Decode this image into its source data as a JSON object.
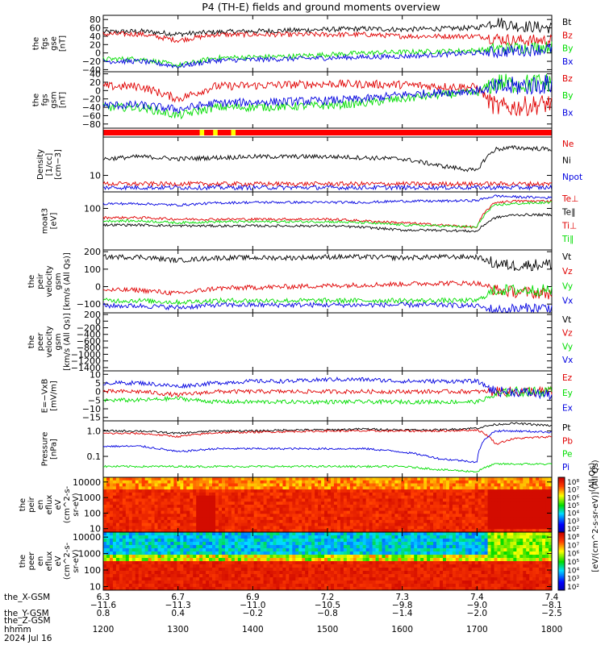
{
  "title": "P4 (TH-E) fields and ground moments overview",
  "colors": {
    "black": "#000000",
    "red": "#e00000",
    "green": "#00dd00",
    "blue": "#0000e0",
    "bar_red": "#ff0000",
    "bar_yellow": "#ffff00"
  },
  "panels": [
    {
      "id": "fgs-gse",
      "ylabel": [
        "the",
        "fgs",
        "gse",
        "[nT]"
      ],
      "yticks": [
        "80",
        "60",
        "40",
        "20",
        "0",
        "−20",
        "−40"
      ],
      "ylim": [
        -45,
        90
      ],
      "ylog": false,
      "legend": [
        {
          "label": "Bt",
          "color": "black"
        },
        {
          "label": "Bz",
          "color": "red"
        },
        {
          "label": "By",
          "color": "green"
        },
        {
          "label": "Bx",
          "color": "blue"
        }
      ]
    },
    {
      "id": "fgs-gsm",
      "ylabel": [
        "the",
        "fgs",
        "gsm",
        "[nT]"
      ],
      "yticks": [
        "40",
        "20",
        "0",
        "−20",
        "−40",
        "−60",
        "−80"
      ],
      "ylim": [
        -90,
        45
      ],
      "ylog": false,
      "legend": [
        {
          "label": "Bz",
          "color": "red"
        },
        {
          "label": "By",
          "color": "green"
        },
        {
          "label": "Bx",
          "color": "blue"
        }
      ]
    },
    {
      "id": "mode-bar",
      "ylabel": [],
      "yticks": [],
      "legend": []
    },
    {
      "id": "density",
      "ylabel": [
        "Density",
        "[1/cc]",
        "[cm−3]"
      ],
      "yticks": [
        "10"
      ],
      "ylim": [
        5,
        50
      ],
      "ylog": true,
      "legend": [
        {
          "label": "Ne",
          "color": "red"
        },
        {
          "label": "Ni",
          "color": "black"
        },
        {
          "label": "Npot",
          "color": "blue"
        }
      ]
    },
    {
      "id": "temperature",
      "ylabel": [
        "moat3",
        "[eV]"
      ],
      "yticks": [
        "100"
      ],
      "ylim": [
        10,
        250
      ],
      "ylog": true,
      "legend": [
        {
          "label": "Te⊥",
          "color": "red"
        },
        {
          "label": "Te∥",
          "color": "black"
        },
        {
          "label": "Ti⊥",
          "color": "red"
        },
        {
          "label": "Ti∥",
          "color": "green"
        }
      ]
    },
    {
      "id": "peir-velocity",
      "ylabel": [
        "the",
        "peir",
        "velocity",
        "gsm",
        "[km/s (All Qs)]"
      ],
      "yticks": [
        "200",
        "100",
        "0",
        "−100"
      ],
      "ylim": [
        -150,
        210
      ],
      "ylog": false,
      "legend": [
        {
          "label": "Vt",
          "color": "black"
        },
        {
          "label": "Vz",
          "color": "red"
        },
        {
          "label": "Vy",
          "color": "green"
        },
        {
          "label": "Vx",
          "color": "blue"
        }
      ]
    },
    {
      "id": "peer-velocity",
      "ylabel": [
        "the",
        "peer",
        "velocity",
        "gsm",
        "[km/s (All Qs)]"
      ],
      "yticks": [
        "200",
        "0",
        "−200",
        "−400",
        "−600",
        "−800",
        "−1000",
        "−1200",
        "−1400"
      ],
      "ylim": [
        -1500,
        250
      ],
      "ylog": false,
      "legend": [
        {
          "label": "Vt",
          "color": "black"
        },
        {
          "label": "Vz",
          "color": "red"
        },
        {
          "label": "Vy",
          "color": "green"
        },
        {
          "label": "Vx",
          "color": "blue"
        }
      ]
    },
    {
      "id": "efield",
      "ylabel": [
        "E=−VxB",
        "[mV/m]"
      ],
      "yticks": [
        "10",
        "5",
        "0",
        "−5",
        "−10",
        "−15"
      ],
      "ylim": [
        -17,
        12
      ],
      "ylog": false,
      "legend": [
        {
          "label": "Ez",
          "color": "red"
        },
        {
          "label": "Ey",
          "color": "green"
        },
        {
          "label": "Ex",
          "color": "blue"
        }
      ]
    },
    {
      "id": "pressure",
      "ylabel": [
        "Pressure",
        "[nPa]"
      ],
      "yticks": [
        "1.0",
        "0.1"
      ],
      "ylim": [
        0.015,
        2.5
      ],
      "ylog": true,
      "legend": [
        {
          "label": "Pt",
          "color": "black"
        },
        {
          "label": "Pb",
          "color": "red"
        },
        {
          "label": "Pe",
          "color": "green"
        },
        {
          "label": "Pi",
          "color": "blue"
        }
      ]
    },
    {
      "id": "peir-eflux",
      "ylabel": [
        "the",
        "peir",
        "en",
        "eflux",
        "eV",
        "(cm^2-s-",
        "sr-eV)"
      ],
      "yticks": [
        "10000",
        "1000",
        "100",
        "10"
      ],
      "ylim": [
        6,
        20000
      ],
      "ylog": true,
      "legend": []
    },
    {
      "id": "peer-eflux",
      "ylabel": [
        "the",
        "peer",
        "en",
        "eflux",
        "eV",
        "(cm^2-s-",
        "sr-eV)"
      ],
      "yticks": [
        "10000",
        "1000",
        "100",
        "10"
      ],
      "ylim": [
        6,
        20000
      ],
      "ylog": true,
      "legend": []
    }
  ],
  "colorbars": [
    {
      "ticks": [
        "10⁸",
        "10⁷",
        "10⁶",
        "10⁵",
        "10⁴",
        "10³",
        "10²"
      ]
    },
    {
      "ticks": [
        "10⁸",
        "10⁷",
        "10⁶",
        "10⁵",
        "10⁴",
        "10³",
        "10²"
      ]
    }
  ],
  "colorbar_label": "[eV/(cm^2-s-sr-eV)] (All Qs)",
  "pressure_side_label": "(All Qs)",
  "xaxis": {
    "rows": [
      {
        "label": "the_X-GSM",
        "values": [
          "6.3",
          "6.7",
          "6.9",
          "7.2",
          "7.3",
          "7.4",
          "7.4"
        ]
      },
      {
        "label": "",
        "values": [
          "−11.6",
          "−11.3",
          "−11.0",
          "−10.5",
          "−9.8",
          "−9.0",
          "−8.1"
        ]
      },
      {
        "label": "the_Y-GSM",
        "values": [
          "0.8",
          "0.4",
          "−0.2",
          "−0.8",
          "−1.4",
          "−2.0",
          "−2.5"
        ]
      },
      {
        "label": "the_Z-GSM",
        "values": [
          "",
          "",
          "",
          "",
          "",
          "",
          ""
        ]
      },
      {
        "label": "hhmm",
        "values": [
          "1200",
          "1300",
          "1400",
          "1500",
          "1600",
          "1700",
          "1800"
        ]
      }
    ],
    "date": "2024 Jul 16"
  },
  "chart_data": {
    "type": "line",
    "title": "P4 (TH-E) fields and ground moments overview",
    "x": [
      "1200",
      "1230",
      "1300",
      "1330",
      "1400",
      "1430",
      "1500",
      "1530",
      "1600",
      "1630",
      "1700",
      "1715",
      "1730",
      "1800"
    ],
    "xlabel": "hhmm",
    "date": "2024 Jul 16",
    "panels": [
      {
        "ylabel": "the fgs gse [nT]",
        "ylim": [
          -45,
          90
        ],
        "series": [
          {
            "name": "Bt",
            "values": [
              50,
              52,
              45,
              50,
              52,
              54,
              56,
              58,
              56,
              58,
              60,
              75,
              65,
              60
            ]
          },
          {
            "name": "Bz",
            "values": [
              45,
              45,
              30,
              44,
              44,
              44,
              44,
              44,
              40,
              40,
              40,
              35,
              30,
              30
            ]
          },
          {
            "name": "By",
            "values": [
              -15,
              -14,
              -30,
              -12,
              -10,
              -8,
              -4,
              0,
              2,
              4,
              6,
              10,
              12,
              15
            ]
          },
          {
            "name": "Bx",
            "values": [
              -20,
              -20,
              -32,
              -18,
              -16,
              -14,
              -12,
              -10,
              -8,
              -4,
              0,
              2,
              5,
              10
            ]
          }
        ]
      },
      {
        "ylabel": "the fgs gsm [nT]",
        "ylim": [
          -90,
          45
        ],
        "series": [
          {
            "name": "Bz",
            "values": [
              10,
              10,
              -20,
              10,
              12,
              14,
              16,
              15,
              14,
              10,
              8,
              -40,
              -40,
              -30
            ]
          },
          {
            "name": "By",
            "values": [
              -40,
              -40,
              -60,
              -40,
              -40,
              -38,
              -36,
              -30,
              -20,
              -10,
              -5,
              20,
              15,
              20
            ]
          },
          {
            "name": "Bx",
            "values": [
              -35,
              -35,
              -45,
              -30,
              -28,
              -26,
              -24,
              -20,
              -10,
              -5,
              0,
              5,
              10,
              15
            ]
          }
        ]
      },
      {
        "ylabel": "Density [1/cc] [cm-3]",
        "ylim": [
          5,
          50
        ],
        "series": [
          {
            "name": "Ni",
            "values": [
              20,
              22,
              20,
              21,
              22,
              22,
              22,
              21,
              20,
              15,
              12,
              30,
              32,
              30
            ]
          },
          {
            "name": "Ne",
            "values": [
              7,
              7,
              7,
              7,
              7,
              7,
              7,
              7,
              7,
              7,
              7,
              7,
              7,
              7
            ]
          },
          {
            "name": "Npot",
            "values": [
              6,
              6,
              6,
              6,
              6,
              6,
              6,
              6,
              6,
              6,
              6,
              6,
              6,
              6
            ]
          }
        ]
      },
      {
        "ylabel": "moat3 [eV]",
        "ylim": [
          10,
          250
        ],
        "series": [
          {
            "name": "Te⊥",
            "values": [
              60,
              60,
              55,
              55,
              55,
              55,
              55,
              50,
              45,
              40,
              35,
              140,
              150,
              150
            ]
          },
          {
            "name": "Te∥",
            "values": [
              40,
              40,
              38,
              38,
              38,
              38,
              38,
              35,
              30,
              30,
              28,
              60,
              70,
              70
            ]
          },
          {
            "name": "Ti⊥",
            "values": [
              130,
              130,
              120,
              135,
              140,
              140,
              140,
              140,
              150,
              150,
              155,
              200,
              190,
              180
            ]
          },
          {
            "name": "Ti∥",
            "values": [
              50,
              50,
              45,
              48,
              48,
              48,
              48,
              45,
              40,
              38,
              35,
              120,
              130,
              140
            ]
          }
        ]
      },
      {
        "ylabel": "the peir velocity gsm [km/s (All Qs)]",
        "ylim": [
          -150,
          210
        ],
        "series": [
          {
            "name": "Vt",
            "values": [
              170,
              170,
              150,
              165,
              165,
              165,
              170,
              170,
              165,
              170,
              170,
              130,
              120,
              130
            ]
          },
          {
            "name": "Vz",
            "values": [
              -20,
              -20,
              -40,
              -10,
              -5,
              0,
              5,
              10,
              15,
              20,
              20,
              -20,
              -30,
              -40
            ]
          },
          {
            "name": "Vy",
            "values": [
              -80,
              -80,
              -90,
              -80,
              -80,
              -80,
              -80,
              -80,
              -80,
              -80,
              -80,
              -20,
              -20,
              -20
            ]
          },
          {
            "name": "Vx",
            "values": [
              -110,
              -110,
              -120,
              -105,
              -105,
              -105,
              -105,
              -105,
              -105,
              -105,
              -110,
              -140,
              -130,
              -120
            ]
          }
        ]
      },
      {
        "ylabel": "the peer velocity gsm [km/s (All Qs)]",
        "ylim": [
          -1500,
          250
        ],
        "series": []
      },
      {
        "ylabel": "E=-VxB [mV/m]",
        "ylim": [
          -17,
          12
        ],
        "series": [
          {
            "name": "Ez",
            "values": [
              0,
              0,
              -2,
              0,
              0,
              0,
              0,
              0,
              0,
              0,
              0,
              0,
              0,
              0
            ]
          },
          {
            "name": "Ey",
            "values": [
              -5,
              -5,
              -4,
              -6,
              -6,
              -6,
              -6,
              -6,
              -6,
              -6,
              -6,
              -2,
              0,
              0
            ]
          },
          {
            "name": "Ex",
            "values": [
              5,
              5,
              3,
              5,
              6,
              6,
              7,
              7,
              6,
              6,
              6,
              0,
              0,
              -2
            ]
          }
        ]
      },
      {
        "ylabel": "Pressure [nPa]",
        "ylim": [
          0.015,
          2.5
        ],
        "series": [
          {
            "name": "Pt",
            "values": [
              1.0,
              1.0,
              0.8,
              1.0,
              1.0,
              1.1,
              1.1,
              1.2,
              1.1,
              1.1,
              1.3,
              1.8,
              2.0,
              1.6
            ]
          },
          {
            "name": "Pb",
            "values": [
              0.8,
              0.8,
              0.6,
              0.85,
              0.9,
              0.95,
              1.0,
              1.0,
              1.0,
              1.0,
              1.1,
              0.3,
              0.5,
              0.6
            ]
          },
          {
            "name": "Pi",
            "values": [
              0.25,
              0.25,
              0.15,
              0.2,
              0.2,
              0.2,
              0.2,
              0.2,
              0.15,
              0.08,
              0.06,
              1.0,
              1.0,
              0.9
            ]
          },
          {
            "name": "Pe",
            "values": [
              0.04,
              0.04,
              0.04,
              0.04,
              0.04,
              0.04,
              0.04,
              0.04,
              0.04,
              0.03,
              0.025,
              0.05,
              0.05,
              0.05
            ]
          }
        ]
      }
    ]
  }
}
